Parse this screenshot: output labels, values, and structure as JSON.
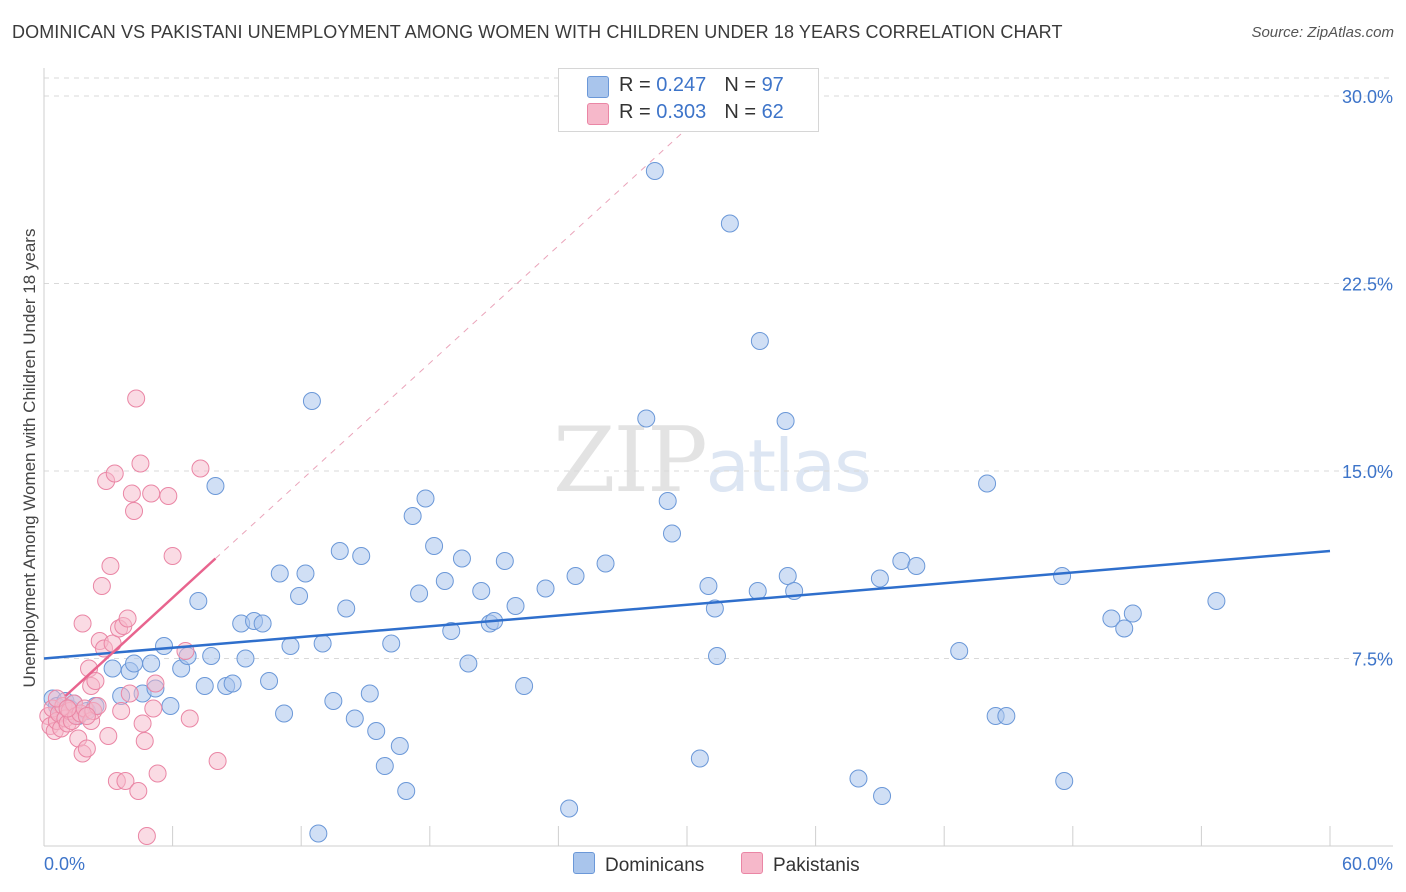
{
  "title": "DOMINICAN VS PAKISTANI UNEMPLOYMENT AMONG WOMEN WITH CHILDREN UNDER 18 YEARS CORRELATION CHART",
  "source": "Source: ZipAtlas.com",
  "watermark": {
    "zip": "ZIP",
    "atlas": "atlas"
  },
  "legend": {
    "rows": [
      {
        "r_label": "R = ",
        "r_value": "0.247",
        "n_label": "N = ",
        "n_value": "97"
      },
      {
        "r_label": "R = ",
        "r_value": "0.303",
        "n_label": "N = ",
        "n_value": "62"
      }
    ]
  },
  "bottom_legend": {
    "dominicans": "Dominicans",
    "pakistanis": "Pakistanis"
  },
  "colors": {
    "dominican_fill": "#a9c5ec",
    "dominican_stroke": "#6b98d8",
    "dominican_line": "#2f6fcc",
    "pakistani_fill": "#f6b8ca",
    "pakistani_stroke": "#ea86a5",
    "pakistani_line": "#e8648e",
    "axis_text": "#3d74c9",
    "grid": "#d9d9d9"
  },
  "chart_data": {
    "type": "scatter",
    "title": "DOMINICAN VS PAKISTANI UNEMPLOYMENT AMONG WOMEN WITH CHILDREN UNDER 18 YEARS CORRELATION CHART",
    "xlabel": "",
    "ylabel": "Unemployment Among Women with Children Under 18 years",
    "xlim": [
      0,
      60
    ],
    "ylim": [
      0,
      30
    ],
    "x_tick_labels": [
      "0.0%",
      "60.0%"
    ],
    "y_ticks": [
      7.5,
      15,
      22.5,
      30
    ],
    "y_tick_labels": [
      "7.5%",
      "15.0%",
      "22.5%",
      "30.0%"
    ],
    "series": [
      {
        "name": "Dominicans",
        "r": 0.247,
        "n": 97,
        "trend": {
          "x0": 0,
          "y0": 7.5,
          "x1": 60,
          "y1": 11.8
        },
        "points": [
          [
            0.4,
            5.9
          ],
          [
            0.6,
            5.6
          ],
          [
            0.8,
            5.3
          ],
          [
            1.0,
            5.8
          ],
          [
            1.2,
            5.5
          ],
          [
            1.4,
            5.7
          ],
          [
            1.6,
            5.2
          ],
          [
            2.0,
            5.4
          ],
          [
            2.4,
            5.6
          ],
          [
            3.2,
            7.1
          ],
          [
            3.6,
            6.0
          ],
          [
            4.0,
            7.0
          ],
          [
            4.2,
            7.3
          ],
          [
            4.6,
            6.1
          ],
          [
            5.0,
            7.3
          ],
          [
            5.2,
            6.3
          ],
          [
            5.6,
            8.0
          ],
          [
            5.9,
            5.6
          ],
          [
            6.4,
            7.1
          ],
          [
            6.7,
            7.6
          ],
          [
            7.2,
            9.8
          ],
          [
            7.5,
            6.4
          ],
          [
            7.8,
            7.6
          ],
          [
            8.0,
            14.4
          ],
          [
            8.5,
            6.4
          ],
          [
            8.8,
            6.5
          ],
          [
            9.2,
            8.9
          ],
          [
            9.4,
            7.5
          ],
          [
            9.8,
            9.0
          ],
          [
            10.2,
            8.9
          ],
          [
            10.5,
            6.6
          ],
          [
            11.0,
            10.9
          ],
          [
            11.2,
            5.3
          ],
          [
            11.5,
            8.0
          ],
          [
            11.9,
            10.0
          ],
          [
            12.2,
            10.9
          ],
          [
            12.5,
            17.8
          ],
          [
            12.8,
            0.5
          ],
          [
            13.0,
            8.1
          ],
          [
            13.5,
            5.8
          ],
          [
            13.8,
            11.8
          ],
          [
            14.1,
            9.5
          ],
          [
            14.5,
            5.1
          ],
          [
            14.8,
            11.6
          ],
          [
            15.2,
            6.1
          ],
          [
            15.5,
            4.6
          ],
          [
            15.9,
            3.2
          ],
          [
            16.2,
            8.1
          ],
          [
            16.6,
            4.0
          ],
          [
            16.9,
            2.2
          ],
          [
            17.2,
            13.2
          ],
          [
            17.5,
            10.1
          ],
          [
            17.8,
            13.9
          ],
          [
            18.2,
            12.0
          ],
          [
            18.7,
            10.6
          ],
          [
            19.0,
            8.6
          ],
          [
            19.5,
            11.5
          ],
          [
            19.8,
            7.3
          ],
          [
            20.4,
            10.2
          ],
          [
            20.8,
            8.9
          ],
          [
            21.0,
            9.0
          ],
          [
            21.5,
            11.4
          ],
          [
            22.0,
            9.6
          ],
          [
            22.4,
            6.4
          ],
          [
            23.4,
            10.3
          ],
          [
            24.5,
            1.5
          ],
          [
            24.8,
            10.8
          ],
          [
            26.2,
            11.3
          ],
          [
            28.1,
            17.1
          ],
          [
            28.5,
            27.0
          ],
          [
            29.1,
            13.8
          ],
          [
            29.3,
            12.5
          ],
          [
            30.6,
            3.5
          ],
          [
            31.0,
            10.4
          ],
          [
            31.3,
            9.5
          ],
          [
            31.4,
            7.6
          ],
          [
            32.0,
            24.9
          ],
          [
            33.3,
            10.2
          ],
          [
            33.4,
            20.2
          ],
          [
            34.6,
            17.0
          ],
          [
            34.7,
            10.8
          ],
          [
            35.0,
            10.2
          ],
          [
            38.0,
            2.7
          ],
          [
            39.0,
            10.7
          ],
          [
            39.1,
            2.0
          ],
          [
            40.0,
            11.4
          ],
          [
            40.7,
            11.2
          ],
          [
            42.7,
            7.8
          ],
          [
            44.0,
            14.5
          ],
          [
            44.4,
            5.2
          ],
          [
            44.9,
            5.2
          ],
          [
            47.5,
            10.8
          ],
          [
            47.6,
            2.6
          ],
          [
            49.8,
            9.1
          ],
          [
            50.4,
            8.7
          ],
          [
            50.8,
            9.3
          ],
          [
            54.7,
            9.8
          ]
        ]
      },
      {
        "name": "Pakistanis",
        "r": 0.303,
        "n": 62,
        "trend": {
          "x0": 1.0,
          "y0": 6.0,
          "x1": 8.0,
          "y1": 11.5,
          "ext_x1": 30.0,
          "ext_y1": 28.7
        },
        "points": [
          [
            0.2,
            5.2
          ],
          [
            0.3,
            4.8
          ],
          [
            0.4,
            5.5
          ],
          [
            0.5,
            4.6
          ],
          [
            0.6,
            5.0
          ],
          [
            0.7,
            5.3
          ],
          [
            0.8,
            4.7
          ],
          [
            0.9,
            5.6
          ],
          [
            1.0,
            5.1
          ],
          [
            1.1,
            4.9
          ],
          [
            1.2,
            5.4
          ],
          [
            1.3,
            5.0
          ],
          [
            1.4,
            5.7
          ],
          [
            1.5,
            5.2
          ],
          [
            1.6,
            4.3
          ],
          [
            1.7,
            5.3
          ],
          [
            1.8,
            3.7
          ],
          [
            1.8,
            8.9
          ],
          [
            1.9,
            5.5
          ],
          [
            2.0,
            3.9
          ],
          [
            2.1,
            7.1
          ],
          [
            2.2,
            5.0
          ],
          [
            2.2,
            6.4
          ],
          [
            2.3,
            5.4
          ],
          [
            2.4,
            6.6
          ],
          [
            2.5,
            5.6
          ],
          [
            2.6,
            8.2
          ],
          [
            2.7,
            10.4
          ],
          [
            2.8,
            7.9
          ],
          [
            2.9,
            14.6
          ],
          [
            3.0,
            4.4
          ],
          [
            3.1,
            11.2
          ],
          [
            3.2,
            8.1
          ],
          [
            3.3,
            14.9
          ],
          [
            3.4,
            2.6
          ],
          [
            3.5,
            8.7
          ],
          [
            3.6,
            5.4
          ],
          [
            3.7,
            8.8
          ],
          [
            3.8,
            2.6
          ],
          [
            3.9,
            9.1
          ],
          [
            4.0,
            6.1
          ],
          [
            4.1,
            14.1
          ],
          [
            4.2,
            13.4
          ],
          [
            4.3,
            17.9
          ],
          [
            4.4,
            2.2
          ],
          [
            4.5,
            15.3
          ],
          [
            4.6,
            4.9
          ],
          [
            4.7,
            4.2
          ],
          [
            4.8,
            0.4
          ],
          [
            5.0,
            14.1
          ],
          [
            5.1,
            5.5
          ],
          [
            5.2,
            6.5
          ],
          [
            5.3,
            2.9
          ],
          [
            5.8,
            14.0
          ],
          [
            6.0,
            11.6
          ],
          [
            6.6,
            7.8
          ],
          [
            6.8,
            5.1
          ],
          [
            7.3,
            15.1
          ],
          [
            8.1,
            3.4
          ],
          [
            0.6,
            5.9
          ],
          [
            1.1,
            5.5
          ],
          [
            2.0,
            5.2
          ]
        ]
      }
    ]
  }
}
